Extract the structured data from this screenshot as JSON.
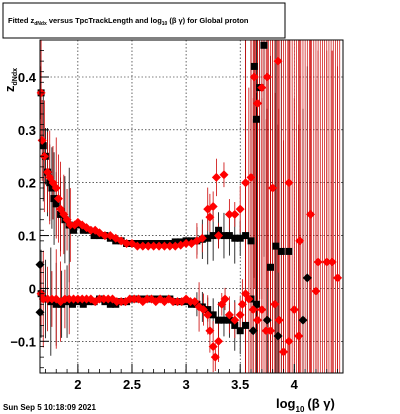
{
  "chart_data": {
    "type": "scatter",
    "title": {
      "prefix": "Fitted z",
      "prefix_sub": "dNdx",
      "middle": " versus TpcTrackLength and log",
      "middle_sub": "10",
      "suffix": "(β γ) for Global proton"
    },
    "xlabel": {
      "main": "log",
      "sub": "10",
      "tail": "(β γ)"
    },
    "ylabel": {
      "main": "z",
      "sub": "dNdx"
    },
    "xlim": [
      1.65,
      4.45
    ],
    "ylim": [
      -0.16,
      0.47
    ],
    "x_ticks": [
      2,
      2.5,
      3,
      3.5,
      4
    ],
    "x_tick_labels": [
      "2",
      "2.5",
      "3",
      "3.5",
      "4"
    ],
    "y_ticks": [
      -0.1,
      0,
      0.1,
      0.2,
      0.3,
      0.4
    ],
    "y_tick_labels": [
      "−0.1",
      "0",
      "0.1",
      "0.2",
      "0.3",
      "0.4"
    ],
    "grid": true,
    "colors": {
      "series_black": "#000000",
      "series_red": "#ff0000",
      "error_red": "#cc0000"
    },
    "series": [
      {
        "marker": "square",
        "color": "#000000",
        "points": [
          [
            1.66,
            0.37
          ],
          [
            1.68,
            0.27
          ],
          [
            1.7,
            0.25
          ],
          [
            1.72,
            0.22
          ],
          [
            1.74,
            0.2
          ],
          [
            1.76,
            0.19
          ],
          [
            1.78,
            0.17
          ],
          [
            1.8,
            0.16
          ],
          [
            1.84,
            0.14
          ],
          [
            1.88,
            0.13
          ],
          [
            1.92,
            0.12
          ],
          [
            1.96,
            0.11
          ],
          [
            2.0,
            0.12
          ],
          [
            2.05,
            0.11
          ],
          [
            2.1,
            0.11
          ],
          [
            2.15,
            0.1
          ],
          [
            2.2,
            0.1
          ],
          [
            2.25,
            0.1
          ],
          [
            2.3,
            0.095
          ],
          [
            2.35,
            0.09
          ],
          [
            2.4,
            0.09
          ],
          [
            2.45,
            0.085
          ],
          [
            2.5,
            0.085
          ],
          [
            2.55,
            0.085
          ],
          [
            2.6,
            0.085
          ],
          [
            2.65,
            0.085
          ],
          [
            2.7,
            0.085
          ],
          [
            2.75,
            0.085
          ],
          [
            2.8,
            0.085
          ],
          [
            2.85,
            0.085
          ],
          [
            2.9,
            0.088
          ],
          [
            2.95,
            0.088
          ],
          [
            3.0,
            0.09
          ],
          [
            3.05,
            0.09
          ],
          [
            3.1,
            0.09
          ],
          [
            3.15,
            0.093
          ],
          [
            3.2,
            0.095
          ],
          [
            3.25,
            0.1
          ],
          [
            3.3,
            0.11
          ],
          [
            3.35,
            0.1
          ],
          [
            3.4,
            0.1
          ],
          [
            3.45,
            0.095
          ],
          [
            3.5,
            0.095
          ],
          [
            3.55,
            0.1
          ],
          [
            3.6,
            0.09
          ],
          [
            3.63,
            0.42
          ],
          [
            3.65,
            0.32
          ],
          [
            3.68,
            0.38
          ],
          [
            3.72,
            0.46
          ],
          [
            3.78,
            0.04
          ],
          [
            3.83,
            0.08
          ],
          [
            3.88,
            0.07
          ],
          [
            3.95,
            0.07
          ],
          [
            1.66,
            -0.01
          ],
          [
            1.7,
            -0.02
          ],
          [
            1.75,
            -0.025
          ],
          [
            1.8,
            -0.03
          ],
          [
            1.85,
            -0.03
          ],
          [
            1.9,
            -0.025
          ],
          [
            1.95,
            -0.03
          ],
          [
            2.0,
            -0.025
          ],
          [
            2.05,
            -0.03
          ],
          [
            2.1,
            -0.025
          ],
          [
            2.15,
            -0.025
          ],
          [
            2.2,
            -0.02
          ],
          [
            2.25,
            -0.025
          ],
          [
            2.3,
            -0.03
          ],
          [
            2.35,
            -0.03
          ],
          [
            2.4,
            -0.025
          ],
          [
            2.45,
            -0.025
          ],
          [
            2.5,
            -0.02
          ],
          [
            2.55,
            -0.02
          ],
          [
            2.6,
            -0.02
          ],
          [
            2.65,
            -0.02
          ],
          [
            2.7,
            -0.02
          ],
          [
            2.75,
            -0.02
          ],
          [
            2.8,
            -0.02
          ],
          [
            2.85,
            -0.02
          ],
          [
            2.9,
            -0.025
          ],
          [
            2.95,
            -0.025
          ],
          [
            3.0,
            -0.025
          ],
          [
            3.05,
            -0.03
          ],
          [
            3.1,
            -0.03
          ],
          [
            3.15,
            -0.035
          ],
          [
            3.2,
            -0.04
          ],
          [
            3.25,
            -0.05
          ],
          [
            3.3,
            -0.06
          ],
          [
            3.35,
            -0.06
          ],
          [
            3.4,
            -0.06
          ],
          [
            3.45,
            -0.07
          ],
          [
            3.5,
            -0.08
          ],
          [
            3.55,
            -0.07
          ],
          [
            3.6,
            -0.02
          ],
          [
            3.65,
            -0.03
          ]
        ]
      },
      {
        "marker": "diamond",
        "color": "#000000",
        "points": [
          [
            1.65,
            0.045
          ],
          [
            1.65,
            -0.045
          ],
          [
            3.62,
            -0.08
          ],
          [
            3.75,
            -0.06
          ],
          [
            3.85,
            -0.09
          ],
          [
            4.08,
            -0.06
          ],
          [
            4.12,
            0.02
          ]
        ]
      },
      {
        "marker": "diamond",
        "color": "#ff0000",
        "points": [
          [
            1.66,
            0.37
          ],
          [
            1.67,
            0.28
          ],
          [
            1.69,
            0.25
          ],
          [
            1.72,
            0.22
          ],
          [
            1.74,
            0.21
          ],
          [
            1.77,
            0.2
          ],
          [
            1.8,
            0.19
          ],
          [
            1.82,
            0.17
          ],
          [
            1.84,
            0.15
          ],
          [
            1.87,
            0.14
          ],
          [
            1.9,
            0.13
          ],
          [
            1.93,
            0.12
          ],
          [
            1.97,
            0.12
          ],
          [
            2.0,
            0.125
          ],
          [
            2.04,
            0.12
          ],
          [
            2.08,
            0.115
          ],
          [
            2.12,
            0.11
          ],
          [
            2.16,
            0.11
          ],
          [
            2.2,
            0.105
          ],
          [
            2.25,
            0.1
          ],
          [
            2.3,
            0.1
          ],
          [
            2.35,
            0.095
          ],
          [
            2.4,
            0.09
          ],
          [
            2.45,
            0.085
          ],
          [
            2.5,
            0.085
          ],
          [
            2.55,
            0.08
          ],
          [
            2.6,
            0.08
          ],
          [
            2.65,
            0.08
          ],
          [
            2.7,
            0.08
          ],
          [
            2.75,
            0.08
          ],
          [
            2.8,
            0.08
          ],
          [
            2.85,
            0.08
          ],
          [
            2.9,
            0.08
          ],
          [
            2.95,
            0.082
          ],
          [
            3.0,
            0.085
          ],
          [
            3.05,
            0.085
          ],
          [
            3.1,
            0.09
          ],
          [
            3.15,
            0.095
          ],
          [
            3.2,
            0.15
          ],
          [
            3.22,
            0.135
          ],
          [
            3.25,
            0.155
          ],
          [
            3.28,
            0.21
          ],
          [
            3.3,
            0.1
          ],
          [
            3.35,
            0.215
          ],
          [
            3.4,
            0.14
          ],
          [
            3.45,
            0.14
          ],
          [
            3.5,
            0.15
          ],
          [
            3.55,
            0.2
          ],
          [
            3.6,
            0.21
          ],
          [
            3.63,
            0.4
          ],
          [
            3.66,
            0.35
          ],
          [
            3.7,
            0.38
          ],
          [
            3.75,
            0.4
          ],
          [
            3.8,
            0.19
          ],
          [
            3.85,
            0.43
          ],
          [
            3.95,
            0.2
          ],
          [
            4.05,
            0.09
          ],
          [
            4.15,
            0.14
          ],
          [
            4.22,
            0.05
          ],
          [
            4.3,
            0.05
          ],
          [
            4.35,
            0.05
          ],
          [
            4.4,
            0.02
          ],
          [
            1.66,
            -0.01
          ],
          [
            1.68,
            -0.02
          ],
          [
            1.72,
            -0.02
          ],
          [
            1.76,
            -0.02
          ],
          [
            1.8,
            -0.02
          ],
          [
            1.84,
            -0.025
          ],
          [
            1.88,
            -0.02
          ],
          [
            1.92,
            -0.02
          ],
          [
            1.96,
            -0.02
          ],
          [
            2.0,
            -0.02
          ],
          [
            2.04,
            -0.02
          ],
          [
            2.08,
            -0.02
          ],
          [
            2.12,
            -0.02
          ],
          [
            2.16,
            -0.025
          ],
          [
            2.2,
            -0.02
          ],
          [
            2.24,
            -0.02
          ],
          [
            2.28,
            -0.02
          ],
          [
            2.32,
            -0.02
          ],
          [
            2.36,
            -0.025
          ],
          [
            2.4,
            -0.025
          ],
          [
            2.44,
            -0.025
          ],
          [
            2.48,
            -0.02
          ],
          [
            2.52,
            -0.02
          ],
          [
            2.56,
            -0.02
          ],
          [
            2.6,
            -0.025
          ],
          [
            2.64,
            -0.02
          ],
          [
            2.68,
            -0.02
          ],
          [
            2.72,
            -0.025
          ],
          [
            2.76,
            -0.02
          ],
          [
            2.8,
            -0.025
          ],
          [
            2.84,
            -0.02
          ],
          [
            2.88,
            -0.025
          ],
          [
            2.92,
            -0.025
          ],
          [
            2.96,
            -0.025
          ],
          [
            3.0,
            -0.02
          ],
          [
            3.04,
            -0.025
          ],
          [
            3.08,
            -0.025
          ],
          [
            3.12,
            -0.035
          ],
          [
            3.16,
            -0.04
          ],
          [
            3.2,
            -0.05
          ],
          [
            3.22,
            -0.08
          ],
          [
            3.25,
            -0.11
          ],
          [
            3.27,
            -0.13
          ],
          [
            3.3,
            -0.1
          ],
          [
            3.33,
            -0.03
          ],
          [
            3.36,
            -0.02
          ],
          [
            3.4,
            -0.05
          ],
          [
            3.45,
            -0.06
          ],
          [
            3.5,
            -0.05
          ],
          [
            3.52,
            -0.03
          ],
          [
            3.55,
            -0.01
          ],
          [
            3.58,
            -0.02
          ],
          [
            3.62,
            -0.04
          ],
          [
            3.66,
            -0.06
          ],
          [
            3.7,
            -0.04
          ],
          [
            3.74,
            -0.08
          ],
          [
            3.78,
            -0.08
          ],
          [
            3.82,
            -0.03
          ],
          [
            3.86,
            -0.06
          ],
          [
            3.9,
            -0.12
          ],
          [
            3.95,
            -0.1
          ],
          [
            4.0,
            -0.04
          ],
          [
            4.04,
            -0.09
          ],
          [
            4.2,
            -0.005
          ]
        ]
      }
    ]
  },
  "footer": {
    "timestamp": "Sun Sep  5 10:18:09 2021"
  }
}
